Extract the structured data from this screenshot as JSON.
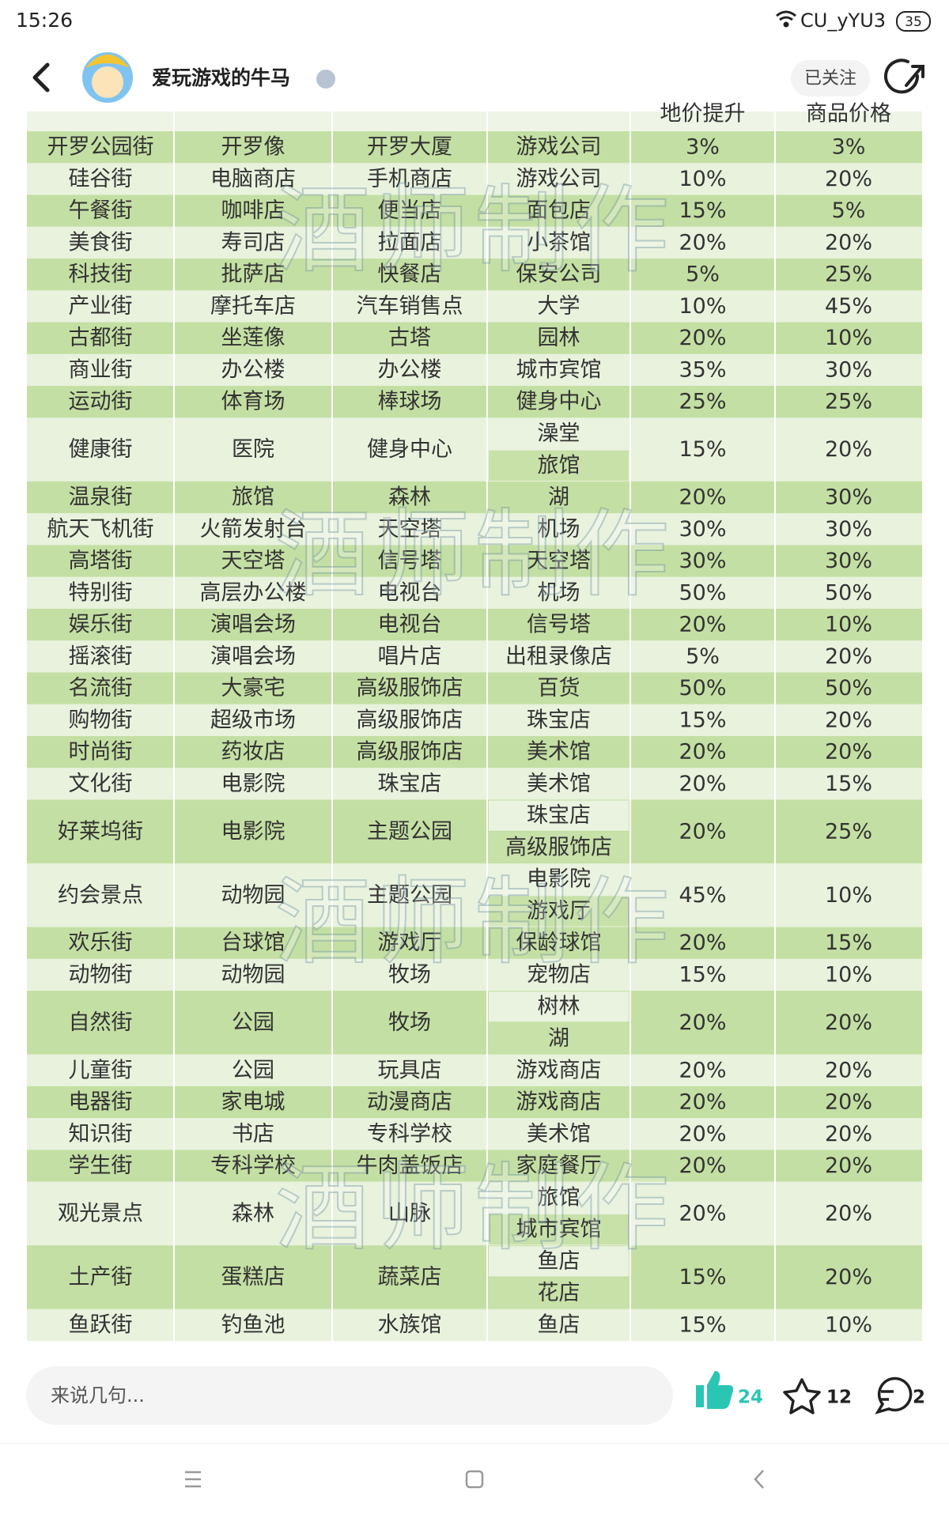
{
  "status_bar": {
    "time": "15:26",
    "carrier": "CU_yYU3",
    "battery": "35"
  },
  "header": {
    "username": "爱玩游戏的牛马",
    "follow_button": "已关注"
  },
  "table": {
    "header": [
      "地价提升",
      "商品价格"
    ],
    "rows": [
      [
        "开罗公园街",
        "开罗像",
        "开罗大厦",
        [
          "游戏公司"
        ],
        "3%",
        "3%"
      ],
      [
        "硅谷街",
        "电脑商店",
        "手机商店",
        [
          "游戏公司"
        ],
        "10%",
        "20%"
      ],
      [
        "午餐街",
        "咖啡店",
        "便当店",
        [
          "面包店"
        ],
        "15%",
        "5%"
      ],
      [
        "美食街",
        "寿司店",
        "拉面店",
        [
          "小茶馆"
        ],
        "20%",
        "20%"
      ],
      [
        "科技街",
        "批萨店",
        "快餐店",
        [
          "保安公司"
        ],
        "5%",
        "25%"
      ],
      [
        "产业街",
        "摩托车店",
        "汽车销售点",
        [
          "大学"
        ],
        "10%",
        "45%"
      ],
      [
        "古都街",
        "坐莲像",
        "古塔",
        [
          "园林"
        ],
        "20%",
        "10%"
      ],
      [
        "商业街",
        "办公楼",
        "办公楼",
        [
          "城市宾馆"
        ],
        "35%",
        "30%"
      ],
      [
        "运动街",
        "体育场",
        "棒球场",
        [
          "健身中心"
        ],
        "25%",
        "25%"
      ],
      [
        "健康街",
        "医院",
        "健身中心",
        [
          "澡堂",
          "旅馆"
        ],
        "15%",
        "20%"
      ],
      [
        "温泉街",
        "旅馆",
        "森林",
        [
          "湖"
        ],
        "20%",
        "30%"
      ],
      [
        "航天飞机街",
        "火箭发射台",
        "天空塔",
        [
          "机场"
        ],
        "30%",
        "30%"
      ],
      [
        "高塔街",
        "天空塔",
        "信号塔",
        [
          "天空塔"
        ],
        "30%",
        "30%"
      ],
      [
        "特别街",
        "高层办公楼",
        "电视台",
        [
          "机场"
        ],
        "50%",
        "50%"
      ],
      [
        "娱乐街",
        "演唱会场",
        "电视台",
        [
          "信号塔"
        ],
        "20%",
        "10%"
      ],
      [
        "摇滚街",
        "演唱会场",
        "唱片店",
        [
          "出租录像店"
        ],
        "5%",
        "20%"
      ],
      [
        "名流街",
        "大豪宅",
        "高级服饰店",
        [
          "百货"
        ],
        "50%",
        "50%"
      ],
      [
        "购物街",
        "超级市场",
        "高级服饰店",
        [
          "珠宝店"
        ],
        "15%",
        "20%"
      ],
      [
        "时尚街",
        "药妆店",
        "高级服饰店",
        [
          "美术馆"
        ],
        "20%",
        "20%"
      ],
      [
        "文化街",
        "电影院",
        "珠宝店",
        [
          "美术馆"
        ],
        "20%",
        "15%"
      ],
      [
        "好莱坞街",
        "电影院",
        "主题公园",
        [
          "珠宝店",
          "高级服饰店"
        ],
        "20%",
        "25%"
      ],
      [
        "约会景点",
        "动物园",
        "主题公园",
        [
          "电影院",
          "游戏厅"
        ],
        "45%",
        "10%"
      ],
      [
        "欢乐街",
        "台球馆",
        "游戏厅",
        [
          "保龄球馆"
        ],
        "20%",
        "15%"
      ],
      [
        "动物街",
        "动物园",
        "牧场",
        [
          "宠物店"
        ],
        "15%",
        "10%"
      ],
      [
        "自然街",
        "公园",
        "牧场",
        [
          "树林",
          "湖"
        ],
        "20%",
        "20%"
      ],
      [
        "儿童街",
        "公园",
        "玩具店",
        [
          "游戏商店"
        ],
        "20%",
        "20%"
      ],
      [
        "电器街",
        "家电城",
        "动漫商店",
        [
          "游戏商店"
        ],
        "20%",
        "20%"
      ],
      [
        "知识街",
        "书店",
        "专科学校",
        [
          "美术馆"
        ],
        "20%",
        "20%"
      ],
      [
        "学生街",
        "专科学校",
        "牛肉盖饭店",
        [
          "家庭餐厅"
        ],
        "20%",
        "20%"
      ],
      [
        "观光景点",
        "森林",
        "山脉",
        [
          "旅馆",
          "城市宾馆"
        ],
        "20%",
        "20%"
      ],
      [
        "土产街",
        "蛋糕店",
        "蔬菜店",
        [
          "鱼店",
          "花店"
        ],
        "15%",
        "20%"
      ],
      [
        "鱼跃街",
        "钓鱼池",
        "水族馆",
        [
          "鱼店"
        ],
        "15%",
        "10%"
      ]
    ]
  },
  "watermark": "酒师制作",
  "footer": {
    "comment_placeholder": "来说几句...",
    "likes": 24,
    "favorites": 12,
    "comments": 2
  }
}
